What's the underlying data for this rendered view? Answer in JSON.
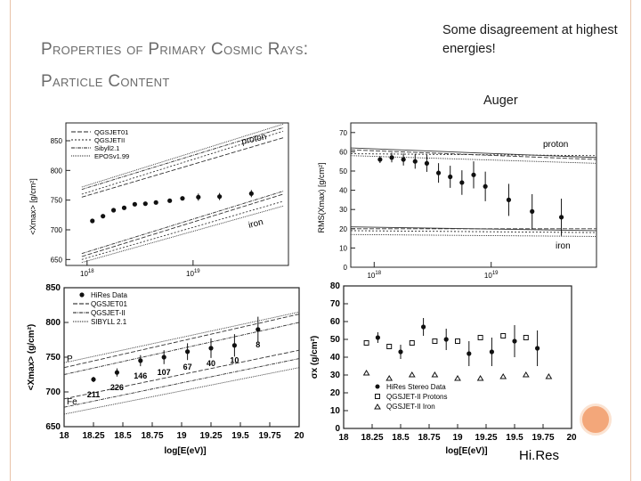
{
  "slide": {
    "title_line1": "Properties of Primary Cosmic Rays:",
    "title_line2": "Particle Content",
    "note": "Some disagreement at highest energies!",
    "auger_label": "Auger",
    "hires_label": "Hi.Res"
  },
  "colors": {
    "frame": "#e9c2a8",
    "accent": "#f3a77a"
  },
  "chart_data": [
    {
      "type": "line",
      "ylabel": "<Xmax> [g/cm²]",
      "yticks": [
        "650",
        "700",
        "750",
        "800",
        "850"
      ],
      "xticks": [
        "10^18",
        "10^19"
      ],
      "ylim": [
        640,
        880
      ],
      "xlim": [
        17.8,
        19.9
      ],
      "legend": [
        "QGSJET01",
        "QGSJETII",
        "Sibyll2.1",
        "EPOSv1.99"
      ],
      "curve_labels": [
        "proton",
        "iron"
      ],
      "points": [
        {
          "x": 18.05,
          "y": 715
        },
        {
          "x": 18.15,
          "y": 723
        },
        {
          "x": 18.25,
          "y": 733
        },
        {
          "x": 18.35,
          "y": 737
        },
        {
          "x": 18.45,
          "y": 743
        },
        {
          "x": 18.55,
          "y": 744
        },
        {
          "x": 18.65,
          "y": 746
        },
        {
          "x": 18.78,
          "y": 749
        },
        {
          "x": 18.9,
          "y": 753
        },
        {
          "x": 19.05,
          "y": 755
        },
        {
          "x": 19.25,
          "y": 756
        },
        {
          "x": 19.55,
          "y": 761
        }
      ]
    },
    {
      "type": "line",
      "ylabel": "RMS(Xmax) [g/cm²]",
      "yticks": [
        "0",
        "10",
        "20",
        "30",
        "40",
        "50",
        "60",
        "70"
      ],
      "xticks": [
        "10^18",
        "10^19"
      ],
      "ylim": [
        0,
        75
      ],
      "xlim": [
        17.8,
        19.9
      ],
      "curve_labels": [
        "proton",
        "iron"
      ],
      "points": [
        {
          "x": 18.05,
          "y": 56
        },
        {
          "x": 18.15,
          "y": 57
        },
        {
          "x": 18.25,
          "y": 56
        },
        {
          "x": 18.35,
          "y": 55
        },
        {
          "x": 18.45,
          "y": 54
        },
        {
          "x": 18.55,
          "y": 49
        },
        {
          "x": 18.65,
          "y": 47
        },
        {
          "x": 18.75,
          "y": 44
        },
        {
          "x": 18.85,
          "y": 48
        },
        {
          "x": 18.95,
          "y": 42
        },
        {
          "x": 19.15,
          "y": 35
        },
        {
          "x": 19.35,
          "y": 29
        },
        {
          "x": 19.6,
          "y": 26
        }
      ]
    },
    {
      "type": "line",
      "xlabel": "log[E(eV)]",
      "ylabel": "<Xmax> (g/cm²)",
      "yticks": [
        "650",
        "700",
        "750",
        "800",
        "850"
      ],
      "xticks": [
        "18",
        "18.25",
        "18.5",
        "18.75",
        "19",
        "19.25",
        "19.5",
        "19.75",
        "20"
      ],
      "ylim": [
        650,
        850
      ],
      "xlim": [
        18,
        20
      ],
      "legend": [
        "HiRes Data",
        "QGSJET01",
        "QGSJET-II",
        "SIBYLL 2.1"
      ],
      "curve_labels": [
        "P",
        "Fe"
      ],
      "points": [
        {
          "x": 18.25,
          "y": 718,
          "n": "211"
        },
        {
          "x": 18.45,
          "y": 728,
          "n": "226"
        },
        {
          "x": 18.65,
          "y": 745,
          "n": "146"
        },
        {
          "x": 18.85,
          "y": 750,
          "n": "107"
        },
        {
          "x": 19.05,
          "y": 758,
          "n": "67"
        },
        {
          "x": 19.25,
          "y": 763,
          "n": "40"
        },
        {
          "x": 19.45,
          "y": 767,
          "n": "10"
        },
        {
          "x": 19.65,
          "y": 790,
          "n": "8"
        }
      ]
    },
    {
      "type": "scatter",
      "xlabel": "log[E(eV)]",
      "ylabel": "σx (g/cm²)",
      "yticks": [
        "0",
        "10",
        "20",
        "30",
        "40",
        "50",
        "60",
        "70",
        "80"
      ],
      "xticks": [
        "18",
        "18.25",
        "18.5",
        "18.75",
        "19",
        "19.25",
        "19.5",
        "19.75",
        "20"
      ],
      "ylim": [
        0,
        80
      ],
      "xlim": [
        18,
        20
      ],
      "legend": [
        "HiRes Stereo Data",
        "QGSJET-II Protons",
        "QGSJET-II Iron"
      ],
      "series": [
        {
          "marker": "circle",
          "values": [
            {
              "x": 18.3,
              "y": 51
            },
            {
              "x": 18.5,
              "y": 43
            },
            {
              "x": 18.7,
              "y": 57
            },
            {
              "x": 18.9,
              "y": 50
            },
            {
              "x": 19.1,
              "y": 42
            },
            {
              "x": 19.3,
              "y": 43
            },
            {
              "x": 19.5,
              "y": 49
            },
            {
              "x": 19.7,
              "y": 45
            }
          ]
        },
        {
          "marker": "square",
          "values": [
            {
              "x": 18.2,
              "y": 48
            },
            {
              "x": 18.4,
              "y": 46
            },
            {
              "x": 18.6,
              "y": 48
            },
            {
              "x": 18.8,
              "y": 49
            },
            {
              "x": 19.0,
              "y": 49
            },
            {
              "x": 19.2,
              "y": 51
            },
            {
              "x": 19.4,
              "y": 52
            },
            {
              "x": 19.6,
              "y": 51
            }
          ]
        },
        {
          "marker": "triangle",
          "values": [
            {
              "x": 18.2,
              "y": 31
            },
            {
              "x": 18.4,
              "y": 28
            },
            {
              "x": 18.6,
              "y": 30
            },
            {
              "x": 18.8,
              "y": 30
            },
            {
              "x": 19.0,
              "y": 28
            },
            {
              "x": 19.2,
              "y": 28
            },
            {
              "x": 19.4,
              "y": 29
            },
            {
              "x": 19.6,
              "y": 30
            },
            {
              "x": 19.8,
              "y": 29
            }
          ]
        }
      ]
    }
  ]
}
